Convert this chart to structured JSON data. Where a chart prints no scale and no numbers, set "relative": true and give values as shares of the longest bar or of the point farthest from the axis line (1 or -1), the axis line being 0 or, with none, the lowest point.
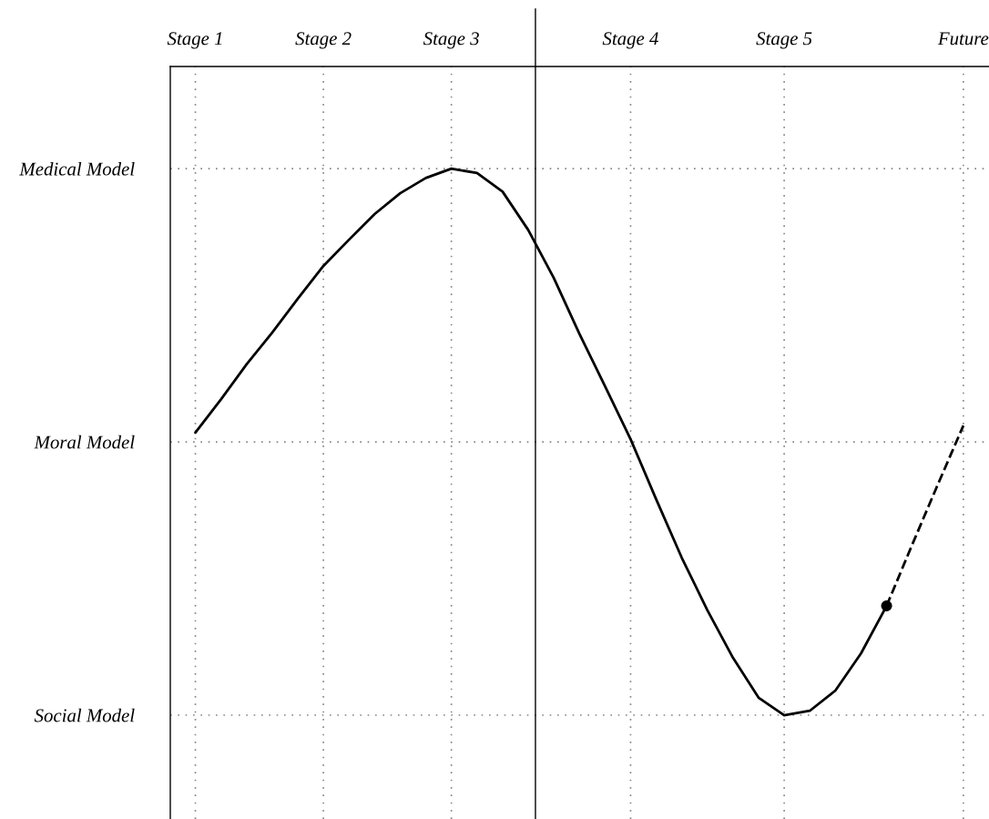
{
  "chart_data": {
    "type": "line",
    "relative": true,
    "categories": [
      "Stage 1",
      null,
      null,
      null,
      null,
      "Stage 2",
      null,
      null,
      null,
      null,
      "Stage 3",
      null,
      null,
      null,
      null,
      null,
      null,
      "Stage 4",
      null,
      null,
      null,
      null,
      null,
      "Stage 5",
      null,
      null,
      null,
      null,
      null,
      null,
      "Future"
    ],
    "annotations": [
      "Medical Model",
      "Moral Model",
      "Social Model"
    ],
    "grid": true,
    "series": [
      {
        "color": "#000000",
        "line_style": "solid",
        "values": [
          0.517,
          0.578,
          0.642,
          0.7,
          0.762,
          0.822,
          0.87,
          0.917,
          0.955,
          0.983,
          1.0,
          0.992,
          0.958,
          0.888,
          0.8,
          0.698,
          0.602,
          0.505,
          0.395,
          0.288,
          0.192,
          0.105,
          0.032,
          0.0,
          0.008,
          0.045,
          0.113,
          0.2,
          null,
          null,
          null
        ]
      },
      {
        "color": "#000000",
        "line_style": "dashed",
        "values": [
          null,
          null,
          null,
          null,
          null,
          null,
          null,
          null,
          null,
          null,
          null,
          null,
          null,
          null,
          null,
          null,
          null,
          null,
          null,
          null,
          null,
          null,
          null,
          null,
          null,
          null,
          null,
          0.2,
          0.312,
          0.422,
          0.53
        ]
      },
      {
        "type": "scatter",
        "color": "#000000",
        "marker": "circle",
        "values": [
          null,
          null,
          null,
          null,
          null,
          null,
          null,
          null,
          null,
          null,
          null,
          null,
          null,
          null,
          null,
          null,
          null,
          null,
          null,
          null,
          null,
          null,
          null,
          null,
          null,
          null,
          null,
          0.2,
          null,
          null,
          null
        ]
      }
    ]
  }
}
